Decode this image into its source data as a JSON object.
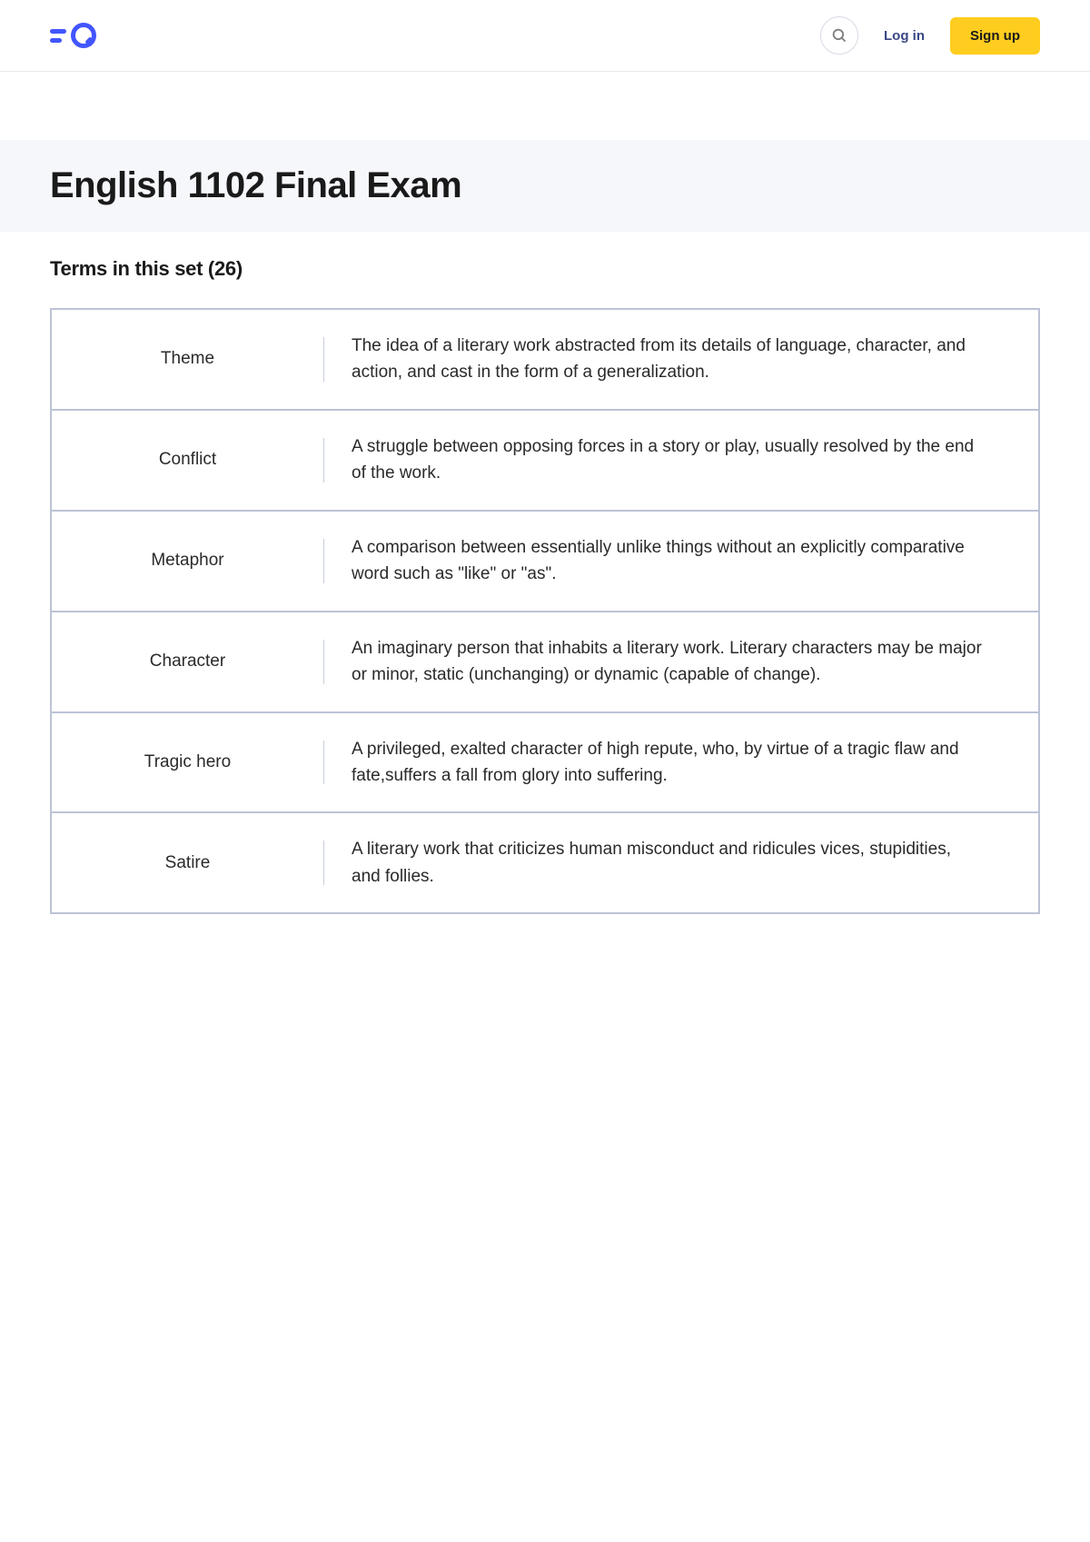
{
  "header": {
    "login_label": "Log in",
    "signup_label": "Sign up"
  },
  "page": {
    "title": "English 1102 Final Exam",
    "terms_header_prefix": "Terms in this set (",
    "terms_count": "26",
    "terms_header_suffix": ")"
  },
  "terms": [
    {
      "name": "Theme",
      "definition": "The idea of a literary work abstracted from its details of language, character, and action, and cast in the form of a generalization."
    },
    {
      "name": "Conflict",
      "definition": "A struggle between opposing forces in a story or play, usually resolved by the end of the work."
    },
    {
      "name": "Metaphor",
      "definition": "A comparison between essentially unlike things without an explicitly comparative word such as \"like\" or \"as\"."
    },
    {
      "name": "Character",
      "definition": "An imaginary person that inhabits a literary work. Literary characters may be major or minor, static (unchanging) or dynamic (capable of change)."
    },
    {
      "name": "Tragic hero",
      "definition": "A privileged, exalted character of high repute, who, by virtue of a tragic flaw and fate,suffers a fall from glory into suffering."
    },
    {
      "name": "Satire",
      "definition": "A literary work that criticizes human misconduct and ridicules vices, stupidities, and follies."
    }
  ],
  "colors": {
    "primary": "#4255ff",
    "accent": "#ffcd1f",
    "border": "#bcc3d6",
    "title_bg": "#f6f7fb",
    "text": "#1a1a1a"
  }
}
